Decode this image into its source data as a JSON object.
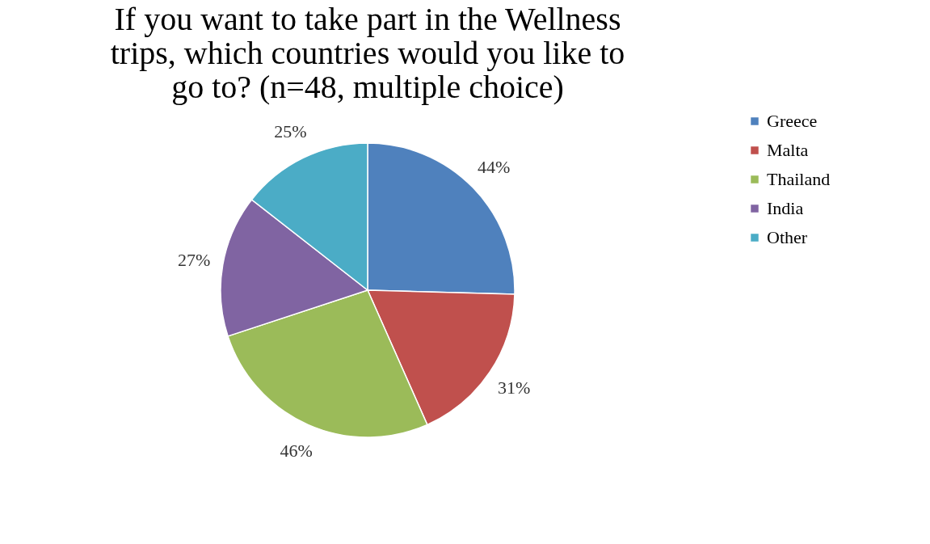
{
  "chart_data": {
    "type": "pie",
    "title": "If you want to take part in the Wellness trips, which countries would you like to go to? (n=48, multiple choice)",
    "categories": [
      "Greece",
      "Malta",
      "Thailand",
      "India",
      "Other"
    ],
    "values": [
      44,
      31,
      46,
      27,
      25
    ],
    "colors": [
      "#4f81bd",
      "#c0504d",
      "#9bbb59",
      "#8064a2",
      "#4bacc6"
    ],
    "value_labels": [
      "44%",
      "31%",
      "46%",
      "27%",
      "25%"
    ],
    "legend": "right"
  }
}
